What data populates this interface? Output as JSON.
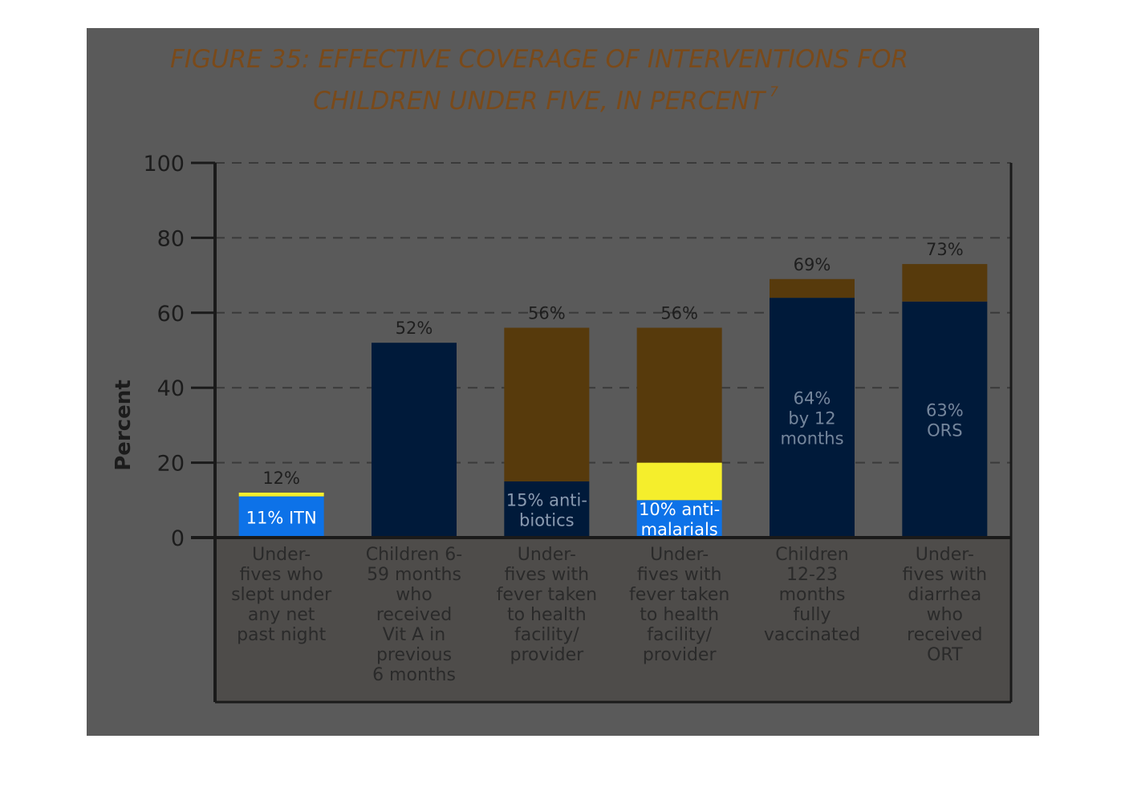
{
  "chart_data": {
    "type": "bar",
    "stacked": true,
    "title": [
      "FIGURE 35: EFFECTIVE COVERAGE OF INTERVENTIONS FOR",
      "CHILDREN UNDER FIVE, IN PERCENT"
    ],
    "title_superscript": "7",
    "ylabel": "Percent",
    "ylim": [
      0,
      100
    ],
    "yticks": [
      0,
      20,
      40,
      60,
      80,
      100
    ],
    "grid": true,
    "categories": [
      [
        "Under-",
        "fives who",
        "slept under",
        "any net",
        "past night"
      ],
      [
        "Children 6-",
        "59 months",
        "who",
        "received",
        "Vit A in",
        "previous",
        "6 months"
      ],
      [
        "Under-",
        "fives with",
        "fever taken",
        "to health",
        "facility/",
        "provider"
      ],
      [
        "Under-",
        "fives with",
        "fever taken",
        "to health",
        "facility/",
        "provider"
      ],
      [
        "Children",
        "12-23",
        "months",
        "fully",
        "vaccinated"
      ],
      [
        "Under-",
        "fives with",
        "diarrhea",
        "who",
        "received",
        "ORT"
      ]
    ],
    "totals": [
      12,
      52,
      56,
      56,
      69,
      73
    ],
    "total_labels": [
      "12%",
      "52%",
      "56%",
      "56%",
      "69%",
      "73%"
    ],
    "bars": [
      {
        "segments": [
          {
            "value": 11,
            "color": "#0d72e8",
            "label": [
              "11% ITN"
            ],
            "label_color": "#ffffff"
          },
          {
            "value": 1,
            "color": "#f5ee2c",
            "label": [],
            "label_color": ""
          }
        ]
      },
      {
        "segments": [
          {
            "value": 52,
            "color": "#001a3a",
            "label": [],
            "label_color": ""
          }
        ]
      },
      {
        "segments": [
          {
            "value": 15,
            "color": "#001a3a",
            "label": [
              "15% anti-",
              "biotics"
            ],
            "label_color": "#8a9ab0"
          },
          {
            "value": 41,
            "color": "#573a0c",
            "label": [],
            "label_color": ""
          }
        ]
      },
      {
        "segments": [
          {
            "value": 10,
            "color": "#0d72e8",
            "label": [
              "10% anti-",
              "malarials"
            ],
            "label_color": "#ffffff"
          },
          {
            "value": 10,
            "color": "#f5ee2c",
            "label": [],
            "label_color": ""
          },
          {
            "value": 36,
            "color": "#573a0c",
            "label": [],
            "label_color": ""
          }
        ]
      },
      {
        "segments": [
          {
            "value": 64,
            "color": "#001a3a",
            "label": [
              "64%",
              "by 12",
              "months"
            ],
            "label_color": "#75869c"
          },
          {
            "value": 5,
            "color": "#573a0c",
            "label": [],
            "label_color": ""
          }
        ]
      },
      {
        "segments": [
          {
            "value": 63,
            "color": "#001a3a",
            "label": [
              "63%",
              "ORS"
            ],
            "label_color": "#75869c"
          },
          {
            "value": 10,
            "color": "#573a0c",
            "label": [],
            "label_color": ""
          }
        ]
      }
    ],
    "colors": {
      "panel": "#5a5a5a",
      "inner": "#4e4c4a",
      "axis": "#1a1a1a",
      "grid": "#3a3a3a"
    }
  }
}
